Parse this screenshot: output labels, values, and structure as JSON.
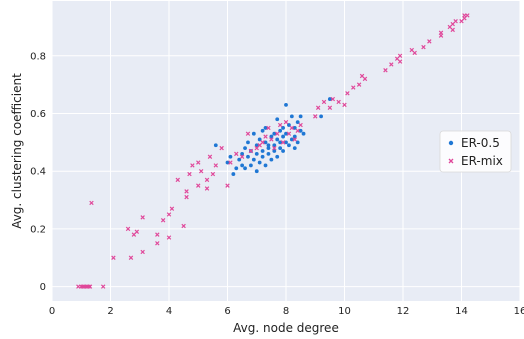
{
  "chart_data": {
    "type": "scatter",
    "title": "",
    "xlabel": "Avg. node degree",
    "ylabel": "Avg. clustering coefficient",
    "xlim": [
      0,
      16
    ],
    "ylim": [
      -0.05,
      0.99
    ],
    "xticks": [
      "0",
      "2",
      "4",
      "6",
      "8",
      "10",
      "12",
      "14",
      "16"
    ],
    "yticks": [
      "0",
      "0.2",
      "0.4",
      "0.6",
      "0.8"
    ],
    "grid": true,
    "legend_position": "right",
    "series": [
      {
        "name": "ER-0.5",
        "color": "#1f77d4",
        "marker": "dot",
        "points": [
          [
            5.6,
            0.49
          ],
          [
            6.0,
            0.43
          ],
          [
            6.1,
            0.45
          ],
          [
            6.2,
            0.39
          ],
          [
            6.3,
            0.41
          ],
          [
            6.4,
            0.44
          ],
          [
            6.5,
            0.46
          ],
          [
            6.5,
            0.42
          ],
          [
            6.6,
            0.48
          ],
          [
            6.6,
            0.41
          ],
          [
            6.7,
            0.45
          ],
          [
            6.7,
            0.5
          ],
          [
            6.8,
            0.42
          ],
          [
            6.8,
            0.47
          ],
          [
            6.9,
            0.53
          ],
          [
            6.9,
            0.44
          ],
          [
            7.0,
            0.4
          ],
          [
            7.0,
            0.46
          ],
          [
            7.0,
            0.49
          ],
          [
            7.1,
            0.51
          ],
          [
            7.1,
            0.43
          ],
          [
            7.2,
            0.54
          ],
          [
            7.2,
            0.47
          ],
          [
            7.2,
            0.45
          ],
          [
            7.3,
            0.55
          ],
          [
            7.3,
            0.42
          ],
          [
            7.3,
            0.5
          ],
          [
            7.4,
            0.46
          ],
          [
            7.4,
            0.48
          ],
          [
            7.5,
            0.52
          ],
          [
            7.5,
            0.44
          ],
          [
            7.6,
            0.49
          ],
          [
            7.6,
            0.53
          ],
          [
            7.6,
            0.47
          ],
          [
            7.7,
            0.51
          ],
          [
            7.7,
            0.58
          ],
          [
            7.7,
            0.45
          ],
          [
            7.8,
            0.5
          ],
          [
            7.8,
            0.48
          ],
          [
            7.9,
            0.52
          ],
          [
            7.9,
            0.55
          ],
          [
            7.9,
            0.47
          ],
          [
            8.0,
            0.63
          ],
          [
            8.0,
            0.5
          ],
          [
            8.0,
            0.53
          ],
          [
            8.1,
            0.49
          ],
          [
            8.1,
            0.56
          ],
          [
            8.2,
            0.51
          ],
          [
            8.2,
            0.59
          ],
          [
            8.3,
            0.52
          ],
          [
            8.3,
            0.55
          ],
          [
            8.4,
            0.5
          ],
          [
            8.4,
            0.57
          ],
          [
            8.5,
            0.59
          ],
          [
            8.5,
            0.54
          ],
          [
            8.6,
            0.53
          ],
          [
            7.4,
            0.49
          ],
          [
            7.8,
            0.54
          ],
          [
            8.3,
            0.48
          ],
          [
            9.5,
            0.65
          ],
          [
            9.2,
            0.59
          ]
        ]
      },
      {
        "name": "ER-mix",
        "color": "#e0489a",
        "marker": "x",
        "points": [
          [
            0.9,
            0.0
          ],
          [
            1.0,
            0.0
          ],
          [
            1.05,
            0.0
          ],
          [
            1.1,
            0.0
          ],
          [
            1.15,
            0.0
          ],
          [
            1.2,
            0.0
          ],
          [
            1.25,
            0.0
          ],
          [
            1.3,
            0.0
          ],
          [
            1.75,
            0.0
          ],
          [
            1.35,
            0.29
          ],
          [
            2.1,
            0.1
          ],
          [
            2.6,
            0.2
          ],
          [
            2.7,
            0.1
          ],
          [
            2.8,
            0.18
          ],
          [
            2.9,
            0.19
          ],
          [
            3.1,
            0.12
          ],
          [
            3.1,
            0.24
          ],
          [
            3.6,
            0.15
          ],
          [
            3.6,
            0.18
          ],
          [
            3.8,
            0.23
          ],
          [
            4.0,
            0.25
          ],
          [
            4.0,
            0.17
          ],
          [
            4.1,
            0.27
          ],
          [
            4.3,
            0.37
          ],
          [
            4.5,
            0.21
          ],
          [
            4.6,
            0.31
          ],
          [
            4.6,
            0.33
          ],
          [
            4.7,
            0.39
          ],
          [
            4.8,
            0.42
          ],
          [
            5.0,
            0.35
          ],
          [
            5.0,
            0.43
          ],
          [
            5.1,
            0.4
          ],
          [
            5.3,
            0.37
          ],
          [
            5.3,
            0.34
          ],
          [
            5.4,
            0.45
          ],
          [
            5.5,
            0.39
          ],
          [
            5.6,
            0.42
          ],
          [
            5.8,
            0.48
          ],
          [
            6.0,
            0.35
          ],
          [
            6.1,
            0.43
          ],
          [
            6.3,
            0.46
          ],
          [
            6.5,
            0.45
          ],
          [
            6.7,
            0.53
          ],
          [
            6.8,
            0.47
          ],
          [
            7.0,
            0.48
          ],
          [
            7.1,
            0.49
          ],
          [
            7.2,
            0.5
          ],
          [
            7.3,
            0.52
          ],
          [
            7.4,
            0.55
          ],
          [
            7.5,
            0.51
          ],
          [
            7.6,
            0.48
          ],
          [
            7.7,
            0.53
          ],
          [
            7.8,
            0.56
          ],
          [
            7.9,
            0.5
          ],
          [
            8.0,
            0.57
          ],
          [
            8.1,
            0.53
          ],
          [
            8.2,
            0.55
          ],
          [
            8.3,
            0.51
          ],
          [
            8.4,
            0.54
          ],
          [
            8.5,
            0.56
          ],
          [
            9.0,
            0.59
          ],
          [
            9.1,
            0.62
          ],
          [
            9.3,
            0.64
          ],
          [
            9.5,
            0.62
          ],
          [
            9.6,
            0.65
          ],
          [
            9.8,
            0.64
          ],
          [
            10.0,
            0.63
          ],
          [
            10.1,
            0.67
          ],
          [
            10.3,
            0.69
          ],
          [
            10.5,
            0.7
          ],
          [
            10.6,
            0.73
          ],
          [
            10.7,
            0.72
          ],
          [
            11.4,
            0.75
          ],
          [
            11.6,
            0.77
          ],
          [
            11.8,
            0.79
          ],
          [
            11.9,
            0.8
          ],
          [
            11.9,
            0.78
          ],
          [
            12.3,
            0.82
          ],
          [
            12.4,
            0.81
          ],
          [
            12.7,
            0.83
          ],
          [
            12.9,
            0.85
          ],
          [
            13.3,
            0.88
          ],
          [
            13.3,
            0.87
          ],
          [
            13.6,
            0.9
          ],
          [
            13.7,
            0.91
          ],
          [
            13.7,
            0.89
          ],
          [
            13.8,
            0.92
          ],
          [
            14.0,
            0.92
          ],
          [
            14.1,
            0.93
          ],
          [
            14.1,
            0.94
          ],
          [
            14.2,
            0.94
          ]
        ]
      }
    ]
  }
}
